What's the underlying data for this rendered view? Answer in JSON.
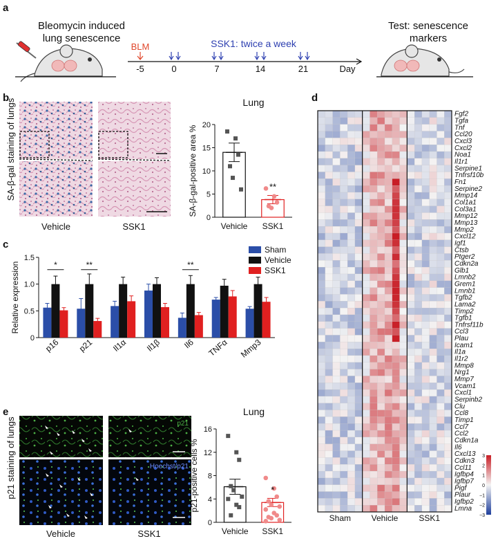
{
  "panel_labels": [
    "a",
    "b",
    "c",
    "d",
    "e"
  ],
  "panel_a": {
    "left_caption": [
      "Bleomycin induced",
      "lung senescence"
    ],
    "right_caption": [
      "Test: senescence",
      "markers"
    ],
    "blm_label": "BLM",
    "ssk1_label": "SSK1: twice a week",
    "day_ticks": [
      "-5",
      "0",
      "7",
      "14",
      "21"
    ],
    "axis_end_label": "Day"
  },
  "panel_b": {
    "ylabel_side": "SA-β-gal staining of lungs",
    "image_labels": [
      "Vehicle",
      "SSK1"
    ]
  },
  "panel_e": {
    "ylabel_side": "p21 staining of lungs",
    "image_labels": [
      "Vehicle",
      "SSK1"
    ],
    "overlay_labels": [
      "p21",
      "Hoechst/p21"
    ]
  },
  "colors": {
    "sham": "#2b4ea8",
    "vehicle": "#111111",
    "ssk1": "#e02020",
    "heat_low": "#1f3f9c",
    "heat_mid": "#f4f4f4",
    "heat_high": "#c81d25"
  },
  "chart_data": [
    {
      "id": "b-bar",
      "type": "bar",
      "title": "Lung",
      "categories": [
        "Vehicle",
        "SSK1"
      ],
      "values": [
        14.0,
        3.8
      ],
      "errors": [
        2.0,
        0.9
      ],
      "points": [
        [
          18.5,
          17,
          13.5,
          11,
          8.5,
          6
        ],
        [
          6.2,
          4.5,
          3.2,
          2.4,
          2.0
        ]
      ],
      "significance": [
        "",
        "**"
      ],
      "ylabel": "SA-β-gal-positive area %",
      "xlabel": "",
      "ylim": [
        0,
        20
      ],
      "yticks": [
        "0",
        "5",
        "10",
        "15",
        "20"
      ]
    },
    {
      "id": "c-bar",
      "type": "bar",
      "title": "",
      "categories": [
        "p16",
        "p21",
        "Il1α",
        "Il1β",
        "Il6",
        "TNFα",
        "Mmp3"
      ],
      "series": [
        {
          "name": "Sham",
          "values": [
            0.56,
            0.54,
            0.59,
            0.88,
            0.37,
            0.71,
            0.54
          ],
          "errors": [
            0.08,
            0.19,
            0.09,
            0.12,
            0.09,
            0.04,
            0.04
          ]
        },
        {
          "name": "Vehicle",
          "values": [
            1.0,
            1.0,
            1.0,
            1.0,
            1.0,
            0.97,
            1.0
          ],
          "errors": [
            0.15,
            0.19,
            0.13,
            0.12,
            0.16,
            0.12,
            0.13
          ]
        },
        {
          "name": "SSK1",
          "values": [
            0.51,
            0.31,
            0.68,
            0.57,
            0.42,
            0.77,
            0.67
          ],
          "errors": [
            0.05,
            0.05,
            0.1,
            0.07,
            0.05,
            0.11,
            0.08
          ]
        }
      ],
      "significance": [
        {
          "category": "p16",
          "label": "*"
        },
        {
          "category": "p21",
          "label": "**"
        },
        {
          "category": "Il6",
          "label": "**"
        }
      ],
      "ylabel": "Relative expression",
      "xlabel": "",
      "ylim": [
        0,
        1.5
      ],
      "yticks": [
        "0",
        "0.5",
        "1.0",
        "1.5"
      ],
      "legend": "top-right"
    },
    {
      "id": "d-heatmap",
      "type": "heatmap",
      "title": "",
      "groups": [
        "Sham",
        "Vehicle",
        "SSK1"
      ],
      "samples_per_group": [
        6,
        6,
        6
      ],
      "genes": [
        "Fgf2",
        "Tgfa",
        "Tnf",
        "Ccl20",
        "Cxcl3",
        "Cxcl2",
        "Noa1",
        "Il1r1",
        "Serpine1",
        "Tnfrsf10b",
        "Fn1",
        "Serpine2",
        "Mmp14",
        "Col1a1",
        "Col3a1",
        "Mmp12",
        "Mmp13",
        "Mmp2",
        "Cxcl12",
        "Igf1",
        "Ctsb",
        "Ptger2",
        "Cdkn2a",
        "Glb1",
        "Lmnb2",
        "Grem1",
        "Lmnb1",
        "Tgfb2",
        "Lama2",
        "Timp2",
        "Tgfb1",
        "Tnfrsf11b",
        "Ccl3",
        "Plau",
        "Icam1",
        "Il1a",
        "Il1r2",
        "Mmp8",
        "Nrg1",
        "Mmp7",
        "Vcam1",
        "Cxcl1",
        "Serpinb2",
        "Clu",
        "Ccl8",
        "Timp1",
        "Ccl7",
        "Ccl2",
        "Cdkn1a",
        "Il6",
        "Cxcl13",
        "Cdkn3",
        "Ccl11",
        "Igfbp4",
        "Igfbp7",
        "Pigf",
        "Plaur",
        "Igfbp2",
        "Lmna"
      ],
      "scale_ticks": [
        "3",
        "2",
        "1",
        "0",
        "−1",
        "−2",
        "−3"
      ],
      "scale_range": [
        -3,
        3
      ]
    },
    {
      "id": "e-bar",
      "type": "bar",
      "title": "Lung",
      "categories": [
        "Vehicle",
        "SSK1"
      ],
      "values": [
        6.1,
        3.4
      ],
      "errors": [
        1.3,
        0.7
      ],
      "points": [
        [
          14.8,
          12.0,
          10.7,
          6.2,
          5.5,
          4.4,
          4.0,
          3.0,
          2.6,
          1.2
        ],
        [
          7.6,
          5.8,
          4.4,
          3.6,
          3.0,
          2.7,
          2.2,
          1.6,
          1.2,
          0.9,
          0.7,
          0.4,
          0.2
        ]
      ],
      "significance": [
        "",
        "*"
      ],
      "ylabel": "p21-positive cells %",
      "xlabel": "",
      "ylim": [
        0,
        16
      ],
      "yticks": [
        "0",
        "4",
        "8",
        "12",
        "16"
      ]
    }
  ]
}
